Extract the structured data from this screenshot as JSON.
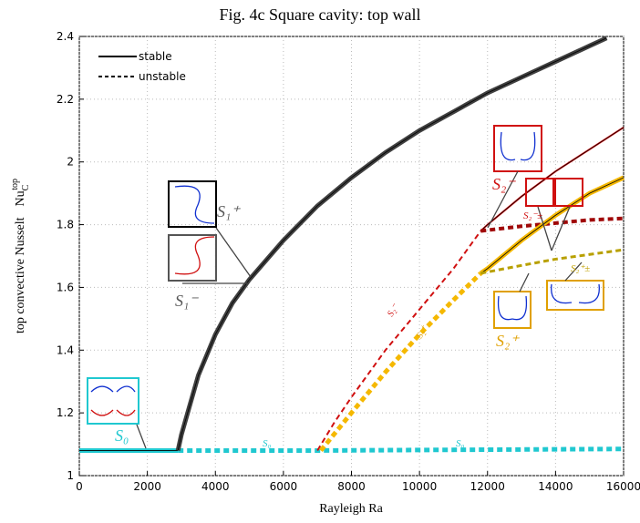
{
  "chart_data": {
    "type": "line",
    "title": "Fig. 4c     Square cavity: top wall",
    "xlabel": "Rayleigh Ra",
    "ylabel": "top convective Nusselt",
    "ylabel_symbol": "Nu",
    "ylabel_sub": "C",
    "ylabel_sup": "top",
    "xlim": [
      0,
      16000
    ],
    "ylim": [
      1,
      2.4
    ],
    "xticks": [
      0,
      2000,
      4000,
      6000,
      8000,
      10000,
      12000,
      14000,
      16000
    ],
    "yticks": [
      1,
      1.2,
      1.4,
      1.6,
      1.8,
      2,
      2.2,
      2.4
    ],
    "grid": true,
    "legend": [
      {
        "label": "stable",
        "style": "solid"
      },
      {
        "label": "unstable",
        "style": "dashed"
      }
    ],
    "series": [
      {
        "color": "#20c8d0",
        "style": "solid",
        "x": [
          0,
          2900
        ],
        "y": [
          1.08,
          1.08
        ]
      },
      {
        "color": "#20c8d0",
        "style": "dashed",
        "x": [
          2900,
          7000,
          16000
        ],
        "y": [
          1.08,
          1.08,
          1.085
        ]
      },
      {
        "color": "#404040",
        "style": "solid",
        "x": [
          2900,
          3000,
          3500,
          4000,
          4500,
          5000,
          6000,
          7000,
          8000,
          9000,
          10000,
          11000,
          12000,
          13000,
          14000,
          15000,
          15500
        ],
        "y": [
          1.08,
          1.13,
          1.32,
          1.45,
          1.55,
          1.625,
          1.75,
          1.86,
          1.95,
          2.03,
          2.1,
          2.16,
          2.22,
          2.27,
          2.32,
          2.37,
          2.395
        ]
      },
      {
        "color": "#d01010",
        "style": "dashed",
        "x": [
          7000,
          7500,
          8000,
          9000,
          10000,
          11000,
          11800
        ],
        "y": [
          1.08,
          1.17,
          1.25,
          1.4,
          1.53,
          1.66,
          1.78
        ]
      },
      {
        "color": "#e01818",
        "style": "solid",
        "x": [
          11800,
          12000,
          13000,
          14000,
          15000,
          16000
        ],
        "y": [
          1.78,
          1.8,
          1.89,
          1.97,
          2.04,
          2.11
        ]
      },
      {
        "color": "#a00808",
        "style": "dashed",
        "x": [
          11800,
          13000,
          14000,
          15000,
          16000
        ],
        "y": [
          1.78,
          1.795,
          1.805,
          1.815,
          1.82
        ]
      },
      {
        "color": "#f5b800",
        "style": "dashed",
        "x": [
          7100,
          8000,
          9000,
          10000,
          11000,
          11800
        ],
        "y": [
          1.08,
          1.2,
          1.33,
          1.45,
          1.56,
          1.645
        ]
      },
      {
        "color": "#f5b800",
        "style": "solid",
        "x": [
          11800,
          12000,
          13000,
          14000,
          15000,
          16000
        ],
        "y": [
          1.645,
          1.66,
          1.75,
          1.83,
          1.9,
          1.95
        ]
      },
      {
        "color": "#b8a000",
        "style": "dashed",
        "x": [
          11800,
          13000,
          14000,
          15000,
          16000
        ],
        "y": [
          1.645,
          1.67,
          1.69,
          1.705,
          1.72
        ]
      }
    ],
    "annotations": [
      "S₀",
      "S₁⁺",
      "S₁⁻",
      "S₂⁻",
      "S₂⁻±",
      "S₂⁺±",
      "S₂⁺",
      "S₂⁻",
      "S₂⁺",
      "S₀",
      "S₀"
    ]
  }
}
